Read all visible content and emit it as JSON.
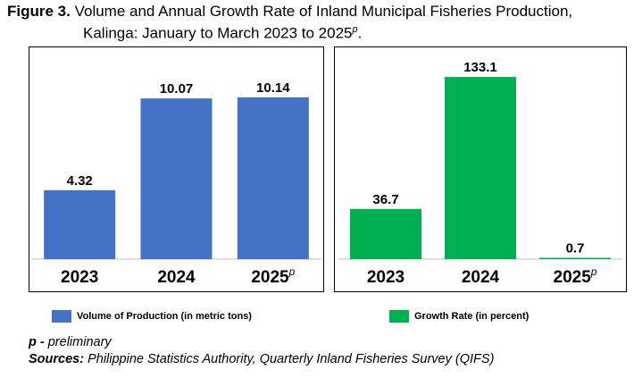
{
  "figure": {
    "label": "Figure 3.",
    "title_line1": " Volume and Annual Growth Rate of Inland Municipal Fisheries Production,",
    "title_line2": "Kalinga: January to March 2023 to 2025",
    "title_superscript": "p"
  },
  "chart_data": [
    {
      "type": "bar",
      "categories": [
        "2023",
        "2024",
        "2025"
      ],
      "category_superscripts": [
        "",
        "",
        "p"
      ],
      "series": [
        {
          "name": "Volume of Production (in metric tons)",
          "values": [
            4.32,
            10.07,
            10.14
          ]
        }
      ],
      "data_labels": [
        "4.32",
        "10.07",
        "10.14"
      ],
      "ylim": [
        0,
        11.2
      ],
      "color": "#4472C4",
      "grid": false
    },
    {
      "type": "bar",
      "categories": [
        "2023",
        "2024",
        "2025"
      ],
      "category_superscripts": [
        "",
        "",
        "p"
      ],
      "series": [
        {
          "name": "Growth Rate (in percent)",
          "values": [
            36.7,
            133.1,
            0.7
          ]
        }
      ],
      "data_labels": [
        "36.7",
        "133.1",
        "0.7"
      ],
      "ylim": [
        0,
        141
      ],
      "color": "#00B050",
      "grid": false
    }
  ],
  "legend": {
    "volume_label": "Volume of Production (in metric tons)",
    "growth_label": "Growth Rate (in percent)"
  },
  "notes": {
    "p_key": "p -",
    "p_text": " preliminary",
    "sources_key": "Sources:",
    "sources_text": "  Philippine Statistics Authority, Quarterly Inland Fisheries Survey (QIFS)"
  }
}
